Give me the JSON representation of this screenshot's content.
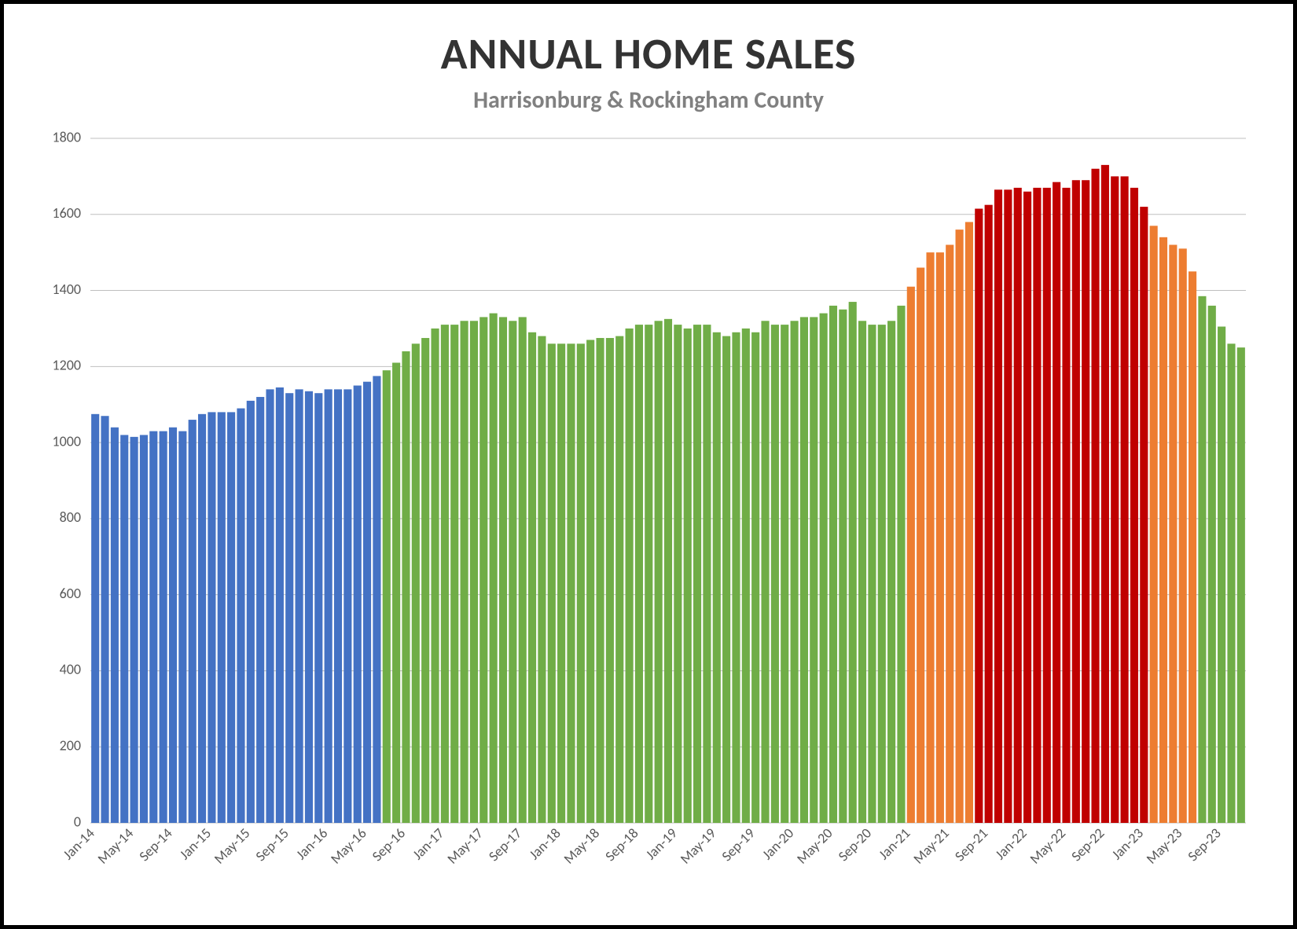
{
  "title": "ANNUAL HOME SALES",
  "subtitle": "Harrisonburg & Rockingham County",
  "title_fontsize": 56,
  "subtitle_fontsize": 30,
  "chart": {
    "type": "bar",
    "background_color": "#ffffff",
    "grid_color": "#bfbfbf",
    "axis_label_color": "#595959",
    "axis_fontsize": 18,
    "ylim": [
      0,
      1800
    ],
    "ytick_step": 200,
    "bar_gap_ratio": 0.18,
    "colors": {
      "blue": "#4472c4",
      "green": "#70ad47",
      "orange": "#ed7d31",
      "red": "#c00000"
    },
    "x_labels_shown": [
      "Jan-14",
      "May-14",
      "Sep-14",
      "Jan-15",
      "May-15",
      "Sep-15",
      "Jan-16",
      "May-16",
      "Sep-16",
      "Jan-17",
      "May-17",
      "Sep-17",
      "Jan-18",
      "May-18",
      "Sep-18",
      "Jan-19",
      "May-19",
      "Sep-19",
      "Jan-20",
      "May-20",
      "Sep-20",
      "Jan-21",
      "May-21",
      "Sep-21",
      "Jan-22",
      "May-22",
      "Sep-22",
      "Jan-23",
      "May-23",
      "Sep-23"
    ],
    "bars": [
      {
        "label": "Jan-14",
        "value": 1075,
        "color": "blue"
      },
      {
        "label": "Feb-14",
        "value": 1070,
        "color": "blue"
      },
      {
        "label": "Mar-14",
        "value": 1040,
        "color": "blue"
      },
      {
        "label": "Apr-14",
        "value": 1020,
        "color": "blue"
      },
      {
        "label": "May-14",
        "value": 1015,
        "color": "blue"
      },
      {
        "label": "Jun-14",
        "value": 1020,
        "color": "blue"
      },
      {
        "label": "Jul-14",
        "value": 1030,
        "color": "blue"
      },
      {
        "label": "Aug-14",
        "value": 1030,
        "color": "blue"
      },
      {
        "label": "Sep-14",
        "value": 1040,
        "color": "blue"
      },
      {
        "label": "Oct-14",
        "value": 1030,
        "color": "blue"
      },
      {
        "label": "Nov-14",
        "value": 1060,
        "color": "blue"
      },
      {
        "label": "Dec-14",
        "value": 1075,
        "color": "blue"
      },
      {
        "label": "Jan-15",
        "value": 1080,
        "color": "blue"
      },
      {
        "label": "Feb-15",
        "value": 1080,
        "color": "blue"
      },
      {
        "label": "Mar-15",
        "value": 1080,
        "color": "blue"
      },
      {
        "label": "Apr-15",
        "value": 1090,
        "color": "blue"
      },
      {
        "label": "May-15",
        "value": 1110,
        "color": "blue"
      },
      {
        "label": "Jun-15",
        "value": 1120,
        "color": "blue"
      },
      {
        "label": "Jul-15",
        "value": 1140,
        "color": "blue"
      },
      {
        "label": "Aug-15",
        "value": 1145,
        "color": "blue"
      },
      {
        "label": "Sep-15",
        "value": 1130,
        "color": "blue"
      },
      {
        "label": "Oct-15",
        "value": 1140,
        "color": "blue"
      },
      {
        "label": "Nov-15",
        "value": 1135,
        "color": "blue"
      },
      {
        "label": "Dec-15",
        "value": 1130,
        "color": "blue"
      },
      {
        "label": "Jan-16",
        "value": 1140,
        "color": "blue"
      },
      {
        "label": "Feb-16",
        "value": 1140,
        "color": "blue"
      },
      {
        "label": "Mar-16",
        "value": 1140,
        "color": "blue"
      },
      {
        "label": "Apr-16",
        "value": 1150,
        "color": "blue"
      },
      {
        "label": "May-16",
        "value": 1160,
        "color": "blue"
      },
      {
        "label": "Jun-16",
        "value": 1175,
        "color": "blue"
      },
      {
        "label": "Jul-16",
        "value": 1190,
        "color": "green"
      },
      {
        "label": "Aug-16",
        "value": 1210,
        "color": "green"
      },
      {
        "label": "Sep-16",
        "value": 1240,
        "color": "green"
      },
      {
        "label": "Oct-16",
        "value": 1260,
        "color": "green"
      },
      {
        "label": "Nov-16",
        "value": 1275,
        "color": "green"
      },
      {
        "label": "Dec-16",
        "value": 1300,
        "color": "green"
      },
      {
        "label": "Jan-17",
        "value": 1310,
        "color": "green"
      },
      {
        "label": "Feb-17",
        "value": 1310,
        "color": "green"
      },
      {
        "label": "Mar-17",
        "value": 1320,
        "color": "green"
      },
      {
        "label": "Apr-17",
        "value": 1320,
        "color": "green"
      },
      {
        "label": "May-17",
        "value": 1330,
        "color": "green"
      },
      {
        "label": "Jun-17",
        "value": 1340,
        "color": "green"
      },
      {
        "label": "Jul-17",
        "value": 1330,
        "color": "green"
      },
      {
        "label": "Aug-17",
        "value": 1320,
        "color": "green"
      },
      {
        "label": "Sep-17",
        "value": 1330,
        "color": "green"
      },
      {
        "label": "Oct-17",
        "value": 1290,
        "color": "green"
      },
      {
        "label": "Nov-17",
        "value": 1280,
        "color": "green"
      },
      {
        "label": "Dec-17",
        "value": 1260,
        "color": "green"
      },
      {
        "label": "Jan-18",
        "value": 1260,
        "color": "green"
      },
      {
        "label": "Feb-18",
        "value": 1260,
        "color": "green"
      },
      {
        "label": "Mar-18",
        "value": 1260,
        "color": "green"
      },
      {
        "label": "Apr-18",
        "value": 1270,
        "color": "green"
      },
      {
        "label": "May-18",
        "value": 1275,
        "color": "green"
      },
      {
        "label": "Jun-18",
        "value": 1275,
        "color": "green"
      },
      {
        "label": "Jul-18",
        "value": 1280,
        "color": "green"
      },
      {
        "label": "Aug-18",
        "value": 1300,
        "color": "green"
      },
      {
        "label": "Sep-18",
        "value": 1310,
        "color": "green"
      },
      {
        "label": "Oct-18",
        "value": 1310,
        "color": "green"
      },
      {
        "label": "Nov-18",
        "value": 1320,
        "color": "green"
      },
      {
        "label": "Dec-18",
        "value": 1325,
        "color": "green"
      },
      {
        "label": "Jan-19",
        "value": 1310,
        "color": "green"
      },
      {
        "label": "Feb-19",
        "value": 1300,
        "color": "green"
      },
      {
        "label": "Mar-19",
        "value": 1310,
        "color": "green"
      },
      {
        "label": "Apr-19",
        "value": 1310,
        "color": "green"
      },
      {
        "label": "May-19",
        "value": 1290,
        "color": "green"
      },
      {
        "label": "Jun-19",
        "value": 1280,
        "color": "green"
      },
      {
        "label": "Jul-19",
        "value": 1290,
        "color": "green"
      },
      {
        "label": "Aug-19",
        "value": 1300,
        "color": "green"
      },
      {
        "label": "Sep-19",
        "value": 1290,
        "color": "green"
      },
      {
        "label": "Oct-19",
        "value": 1320,
        "color": "green"
      },
      {
        "label": "Nov-19",
        "value": 1310,
        "color": "green"
      },
      {
        "label": "Dec-19",
        "value": 1310,
        "color": "green"
      },
      {
        "label": "Jan-20",
        "value": 1320,
        "color": "green"
      },
      {
        "label": "Feb-20",
        "value": 1330,
        "color": "green"
      },
      {
        "label": "Mar-20",
        "value": 1330,
        "color": "green"
      },
      {
        "label": "Apr-20",
        "value": 1340,
        "color": "green"
      },
      {
        "label": "May-20",
        "value": 1360,
        "color": "green"
      },
      {
        "label": "Jun-20",
        "value": 1350,
        "color": "green"
      },
      {
        "label": "Jul-20",
        "value": 1370,
        "color": "green"
      },
      {
        "label": "Aug-20",
        "value": 1320,
        "color": "green"
      },
      {
        "label": "Sep-20",
        "value": 1310,
        "color": "green"
      },
      {
        "label": "Oct-20",
        "value": 1310,
        "color": "green"
      },
      {
        "label": "Nov-20",
        "value": 1320,
        "color": "green"
      },
      {
        "label": "Dec-20",
        "value": 1360,
        "color": "green"
      },
      {
        "label": "Jan-21",
        "value": 1410,
        "color": "orange"
      },
      {
        "label": "Feb-21",
        "value": 1460,
        "color": "orange"
      },
      {
        "label": "Mar-21",
        "value": 1500,
        "color": "orange"
      },
      {
        "label": "Apr-21",
        "value": 1500,
        "color": "orange"
      },
      {
        "label": "May-21",
        "value": 1520,
        "color": "orange"
      },
      {
        "label": "Jun-21",
        "value": 1560,
        "color": "orange"
      },
      {
        "label": "Jul-21",
        "value": 1580,
        "color": "orange"
      },
      {
        "label": "Aug-21",
        "value": 1615,
        "color": "red"
      },
      {
        "label": "Sep-21",
        "value": 1625,
        "color": "red"
      },
      {
        "label": "Oct-21",
        "value": 1665,
        "color": "red"
      },
      {
        "label": "Nov-21",
        "value": 1665,
        "color": "red"
      },
      {
        "label": "Dec-21",
        "value": 1670,
        "color": "red"
      },
      {
        "label": "Jan-22",
        "value": 1660,
        "color": "red"
      },
      {
        "label": "Feb-22",
        "value": 1670,
        "color": "red"
      },
      {
        "label": "Mar-22",
        "value": 1670,
        "color": "red"
      },
      {
        "label": "Apr-22",
        "value": 1685,
        "color": "red"
      },
      {
        "label": "May-22",
        "value": 1670,
        "color": "red"
      },
      {
        "label": "Jun-22",
        "value": 1690,
        "color": "red"
      },
      {
        "label": "Jul-22",
        "value": 1690,
        "color": "red"
      },
      {
        "label": "Aug-22",
        "value": 1720,
        "color": "red"
      },
      {
        "label": "Sep-22",
        "value": 1730,
        "color": "red"
      },
      {
        "label": "Oct-22",
        "value": 1700,
        "color": "red"
      },
      {
        "label": "Nov-22",
        "value": 1700,
        "color": "red"
      },
      {
        "label": "Dec-22",
        "value": 1670,
        "color": "red"
      },
      {
        "label": "Jan-23",
        "value": 1620,
        "color": "red"
      },
      {
        "label": "Feb-23",
        "value": 1570,
        "color": "orange"
      },
      {
        "label": "Mar-23",
        "value": 1540,
        "color": "orange"
      },
      {
        "label": "Apr-23",
        "value": 1520,
        "color": "orange"
      },
      {
        "label": "May-23",
        "value": 1510,
        "color": "orange"
      },
      {
        "label": "Jun-23",
        "value": 1450,
        "color": "orange"
      },
      {
        "label": "Jul-23",
        "value": 1385,
        "color": "green"
      },
      {
        "label": "Aug-23",
        "value": 1360,
        "color": "green"
      },
      {
        "label": "Sep-23",
        "value": 1305,
        "color": "green"
      },
      {
        "label": "Oct-23",
        "value": 1260,
        "color": "green"
      },
      {
        "label": "Nov-23",
        "value": 1250,
        "color": "green"
      }
    ]
  }
}
